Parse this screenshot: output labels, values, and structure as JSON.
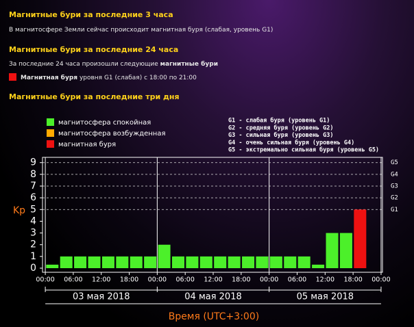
{
  "section1": {
    "title": "Магнитные бури за последние 3 часа",
    "text": "В магнитосфере Земли сейчас происходит магнитная буря (слабая, уровень G1)"
  },
  "section2": {
    "title": "Магнитные бури за последние 24 часа",
    "text": "За последние 24 часа произошли следующие",
    "text_bold": "магнитные бури",
    "event_bold": "Магнитная буря",
    "event_text": "уровня G1 (слабая) с 18:00 по 21:00",
    "event_color": "#ee1111"
  },
  "section3": {
    "title": "Магнитные бури за последние три дня"
  },
  "chart_data": {
    "type": "bar",
    "ylabel": "Kp",
    "xlabel": "Время (UTC+3:00)",
    "legend": [
      {
        "label": "магнитосфера спокойная",
        "color": "#4cf02a"
      },
      {
        "label": "магнитосфера возбужденная",
        "color": "#ffaa00"
      },
      {
        "label": "магнитная буря",
        "color": "#ee1111"
      }
    ],
    "g_legend": [
      "G1 - слабая буря (уровень G1)",
      "G2 - средняя буря (уровень G2)",
      "G3 - сильная буря (уровень G3)",
      "G4 - очень сильная буря (уровень G4)",
      "G5 - экстремально сильная буря (уровень G5)"
    ],
    "x": [
      0,
      3,
      6,
      9,
      12,
      15,
      18,
      21,
      24,
      27,
      30,
      33,
      36,
      39,
      42,
      45,
      48,
      51,
      54,
      57,
      60,
      63,
      66,
      69
    ],
    "bar_width": 3,
    "series": [
      {
        "values": [
          0.3,
          1,
          1,
          1,
          1,
          1,
          1,
          1,
          2,
          1,
          1,
          1,
          1,
          1,
          1,
          1,
          1,
          1,
          1,
          0.3,
          3,
          3,
          5,
          null
        ],
        "colors": [
          "#4cf02a",
          "#4cf02a",
          "#4cf02a",
          "#4cf02a",
          "#4cf02a",
          "#4cf02a",
          "#4cf02a",
          "#4cf02a",
          "#4cf02a",
          "#4cf02a",
          "#4cf02a",
          "#4cf02a",
          "#4cf02a",
          "#4cf02a",
          "#4cf02a",
          "#4cf02a",
          "#4cf02a",
          "#4cf02a",
          "#4cf02a",
          "#4cf02a",
          "#4cf02a",
          "#4cf02a",
          "#ee1111",
          null
        ]
      }
    ],
    "xlim": [
      -0.6,
      72.3
    ],
    "xticks": [
      {
        "value": 0,
        "label": "00:00"
      },
      {
        "value": 6,
        "label": "06:00"
      },
      {
        "value": 12,
        "label": "12:00"
      },
      {
        "value": 18,
        "label": "18:00"
      },
      {
        "value": 24,
        "label": "00:00"
      },
      {
        "value": 30,
        "label": "06:00"
      },
      {
        "value": 36,
        "label": "12:00"
      },
      {
        "value": 42,
        "label": "18:00"
      },
      {
        "value": 48,
        "label": "00:00"
      },
      {
        "value": 54,
        "label": "06:00"
      },
      {
        "value": 60,
        "label": "12:00"
      },
      {
        "value": 66,
        "label": "18:00"
      },
      {
        "value": 72,
        "label": "00:00"
      }
    ],
    "day_bounds": [
      0,
      24,
      48,
      72
    ],
    "days": [
      "03 мая 2018",
      "04 мая 2018",
      "05 мая 2018"
    ],
    "ylim": [
      -0.35,
      9.45
    ],
    "yticks": [
      0,
      1,
      2,
      3,
      4,
      5,
      6,
      7,
      8,
      9
    ],
    "y2lim": [
      -0.35,
      9.45
    ],
    "y2ticks": [
      {
        "value": 5,
        "label": "G1"
      },
      {
        "value": 6,
        "label": "G2"
      },
      {
        "value": 7,
        "label": "G3"
      },
      {
        "value": 8,
        "label": "G4"
      },
      {
        "value": 9,
        "label": "G5"
      }
    ]
  }
}
